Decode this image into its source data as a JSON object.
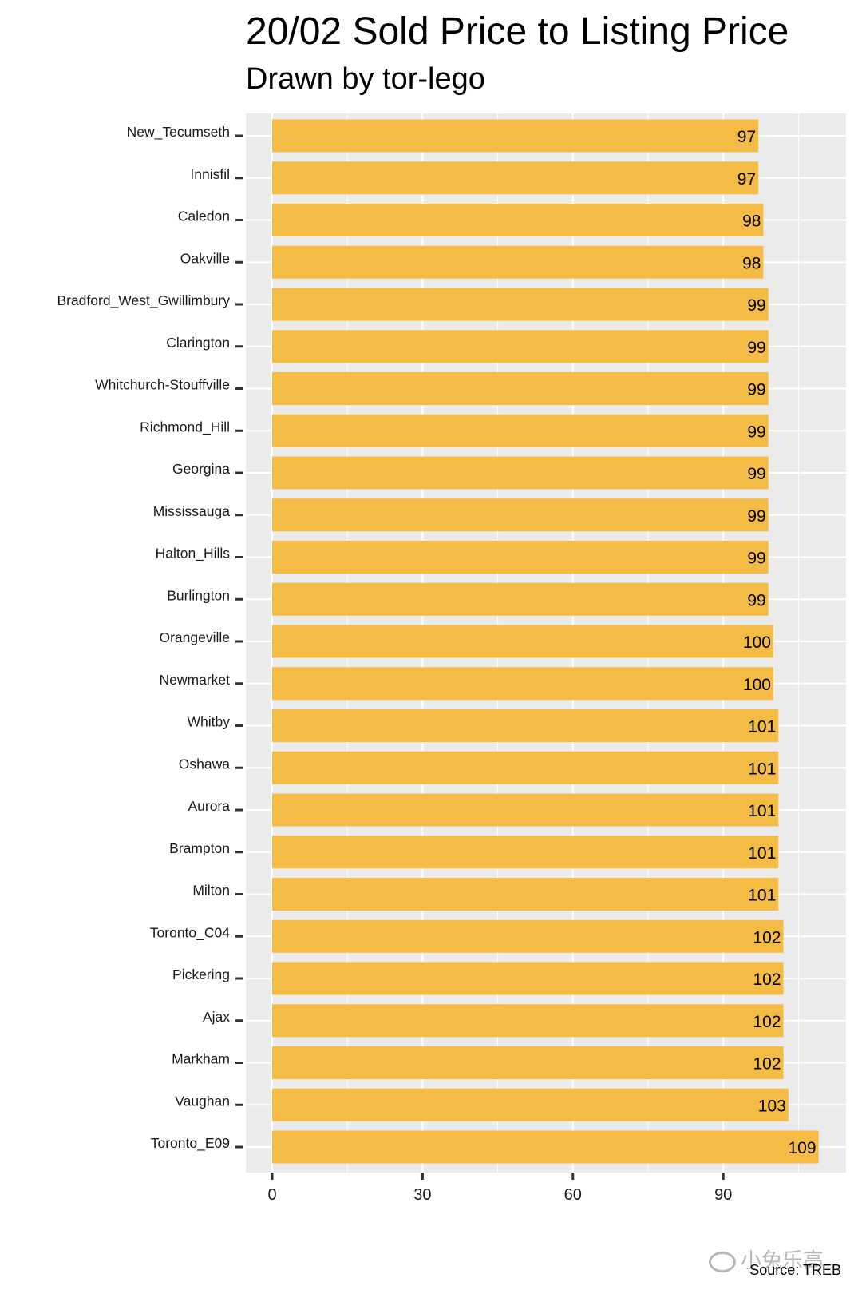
{
  "chart_data": {
    "type": "bar",
    "orientation": "horizontal",
    "title": "20/02 Sold Price to Listing Price",
    "subtitle": "Drawn by tor-lego",
    "caption": "Source: TREB",
    "xlabel": "",
    "ylabel": "",
    "xlim": [
      0,
      112
    ],
    "x_ticks": [
      0,
      30,
      60,
      90
    ],
    "grid": true,
    "bar_color": "#F4BC44",
    "panel_color": "#EBEBEB",
    "categories": [
      "New_Tecumseth",
      "Innisfil",
      "Caledon",
      "Oakville",
      "Bradford_West_Gwillimbury",
      "Clarington",
      "Whitchurch-Stouffville",
      "Richmond_Hill",
      "Georgina",
      "Mississauga",
      "Halton_Hills",
      "Burlington",
      "Orangeville",
      "Newmarket",
      "Whitby",
      "Oshawa",
      "Aurora",
      "Brampton",
      "Milton",
      "Toronto_C04",
      "Pickering",
      "Ajax",
      "Markham",
      "Vaughan",
      "Toronto_E09"
    ],
    "values": [
      97,
      97,
      98,
      98,
      99,
      99,
      99,
      99,
      99,
      99,
      99,
      99,
      100,
      100,
      101,
      101,
      101,
      101,
      101,
      102,
      102,
      102,
      102,
      103,
      109
    ]
  },
  "watermark": {
    "text": "小兔乐高"
  }
}
